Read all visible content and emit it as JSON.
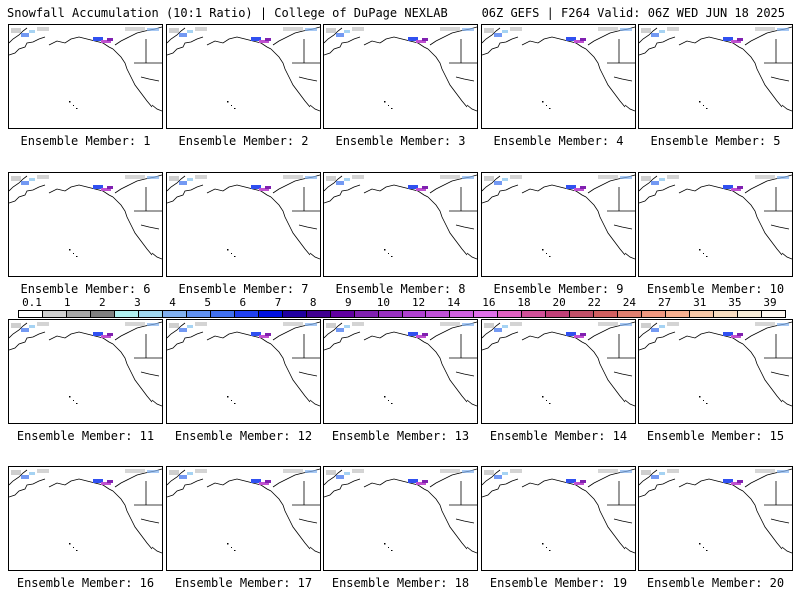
{
  "header": {
    "title_left": "Snowfall Accumulation (10:1 Ratio) | College of DuPage NEXLAB",
    "title_right": "06Z GEFS | F264 Valid: 06Z WED JUN 18 2025"
  },
  "members": [
    {
      "label": "Ensemble Member: 1"
    },
    {
      "label": "Ensemble Member: 2"
    },
    {
      "label": "Ensemble Member: 3"
    },
    {
      "label": "Ensemble Member: 4"
    },
    {
      "label": "Ensemble Member: 5"
    },
    {
      "label": "Ensemble Member: 6"
    },
    {
      "label": "Ensemble Member: 7"
    },
    {
      "label": "Ensemble Member: 8"
    },
    {
      "label": "Ensemble Member: 9"
    },
    {
      "label": "Ensemble Member: 10"
    },
    {
      "label": "Ensemble Member: 11"
    },
    {
      "label": "Ensemble Member: 12"
    },
    {
      "label": "Ensemble Member: 13"
    },
    {
      "label": "Ensemble Member: 14"
    },
    {
      "label": "Ensemble Member: 15"
    },
    {
      "label": "Ensemble Member: 16"
    },
    {
      "label": "Ensemble Member: 17"
    },
    {
      "label": "Ensemble Member: 18"
    },
    {
      "label": "Ensemble Member: 19"
    },
    {
      "label": "Ensemble Member: 20"
    }
  ],
  "colorbar": {
    "ticks": [
      "0.1",
      "1",
      "2",
      "3",
      "4",
      "5",
      "6",
      "7",
      "8",
      "9",
      "10",
      "12",
      "14",
      "16",
      "18",
      "20",
      "22",
      "24",
      "27",
      "31",
      "35",
      "39"
    ],
    "colors": [
      "#ffffff",
      "#d0d0d0",
      "#a8a8a8",
      "#808080",
      "#b0f0f0",
      "#a0d8f0",
      "#80b0f0",
      "#6090f0",
      "#4070f0",
      "#2040f0",
      "#0010e0",
      "#2000a0",
      "#400090",
      "#6000a0",
      "#8020b0",
      "#9830c0",
      "#b040d0",
      "#c050d8",
      "#d060e0",
      "#e070e8",
      "#e060c0",
      "#d05098",
      "#c04078",
      "#c05068",
      "#d06060",
      "#e08070",
      "#f09880",
      "#f8b090",
      "#f8c8a8",
      "#f8dcc0",
      "#f8ecd8",
      "#fff8f0"
    ]
  }
}
